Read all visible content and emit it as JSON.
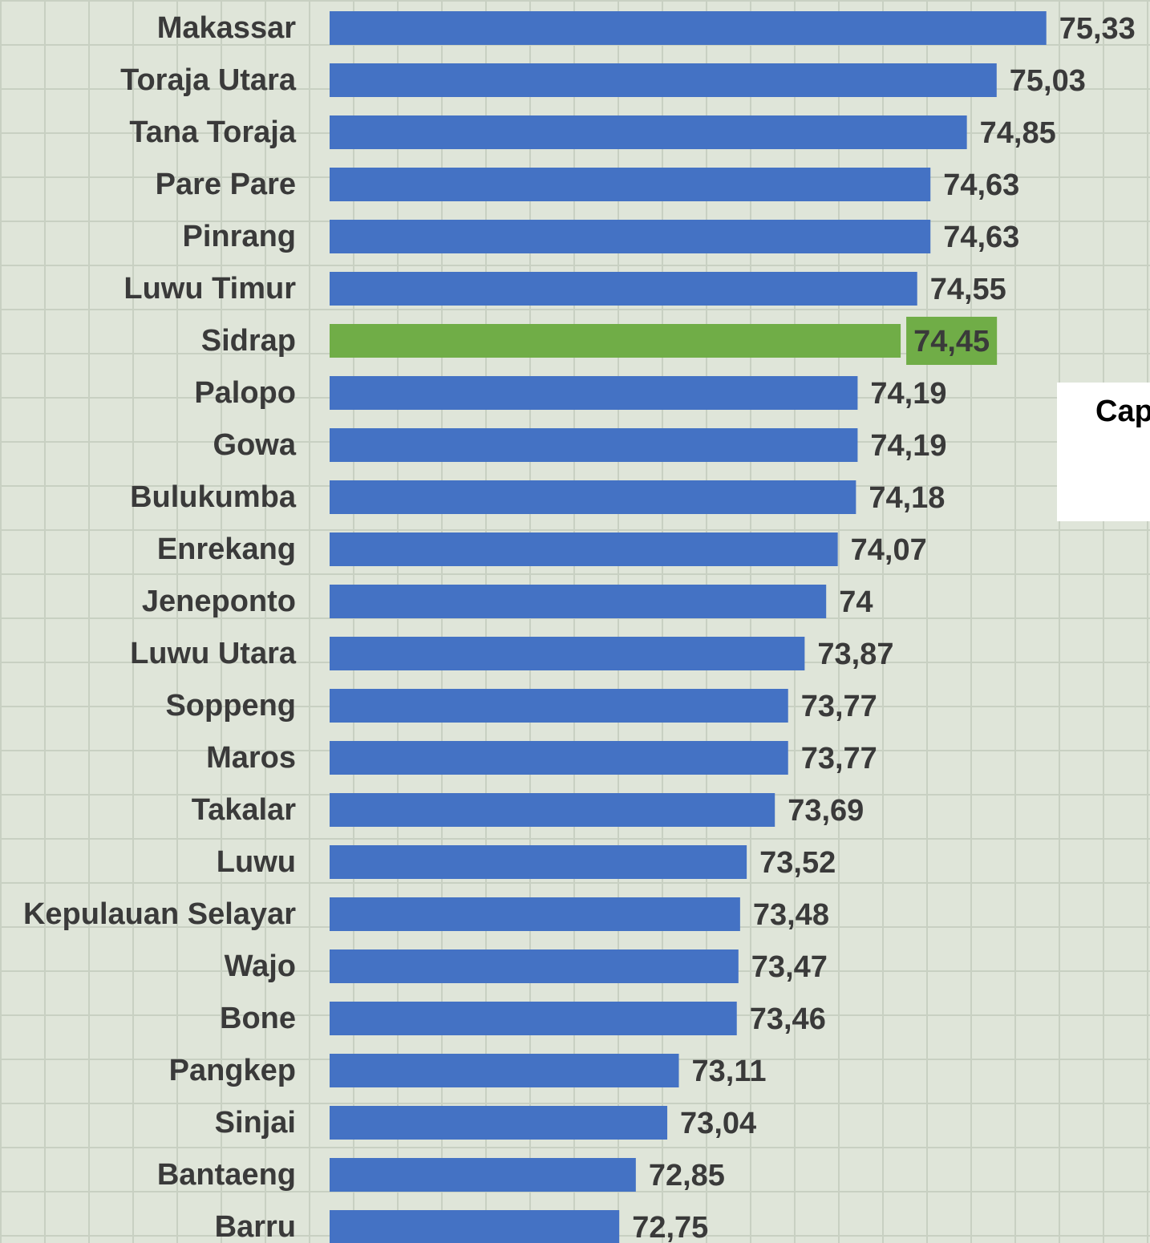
{
  "chart_data": {
    "type": "bar",
    "orientation": "horizontal",
    "categories": [
      "Makassar",
      "Toraja Utara",
      "Tana Toraja",
      "Pare Pare",
      "Pinrang",
      "Luwu Timur",
      "Sidrap",
      "Palopo",
      "Gowa",
      "Bulukumba",
      "Enrekang",
      "Jeneponto",
      "Luwu Utara",
      "Soppeng",
      "Maros",
      "Takalar",
      "Luwu",
      "Kepulauan Selayar",
      "Wajo",
      "Bone",
      "Pangkep",
      "Sinjai",
      "Bantaeng",
      "Barru"
    ],
    "values": [
      75.33,
      75.03,
      74.85,
      74.63,
      74.63,
      74.55,
      74.45,
      74.19,
      74.19,
      74.18,
      74.07,
      74,
      73.87,
      73.77,
      73.77,
      73.69,
      73.52,
      73.48,
      73.47,
      73.46,
      73.11,
      73.04,
      72.85,
      72.75
    ],
    "value_labels": [
      "75,33",
      "75,03",
      "74,85",
      "74,63",
      "74,63",
      "74,55",
      "74,45",
      "74,19",
      "74,19",
      "74,18",
      "74,07",
      "74",
      "73,87",
      "73,77",
      "73,77",
      "73,69",
      "73,52",
      "73,48",
      "73,47",
      "73,46",
      "73,11",
      "73,04",
      "72,85",
      "72,75"
    ],
    "colors": [
      "#4472c4",
      "#4472c4",
      "#4472c4",
      "#4472c4",
      "#4472c4",
      "#4472c4",
      "#70ad47",
      "#4472c4",
      "#4472c4",
      "#4472c4",
      "#4472c4",
      "#4472c4",
      "#4472c4",
      "#4472c4",
      "#4472c4",
      "#4472c4",
      "#4472c4",
      "#4472c4",
      "#4472c4",
      "#4472c4",
      "#4472c4",
      "#4472c4",
      "#4472c4",
      "#4472c4"
    ],
    "xlim": [
      71,
      76
    ],
    "annotation": "Cap"
  }
}
